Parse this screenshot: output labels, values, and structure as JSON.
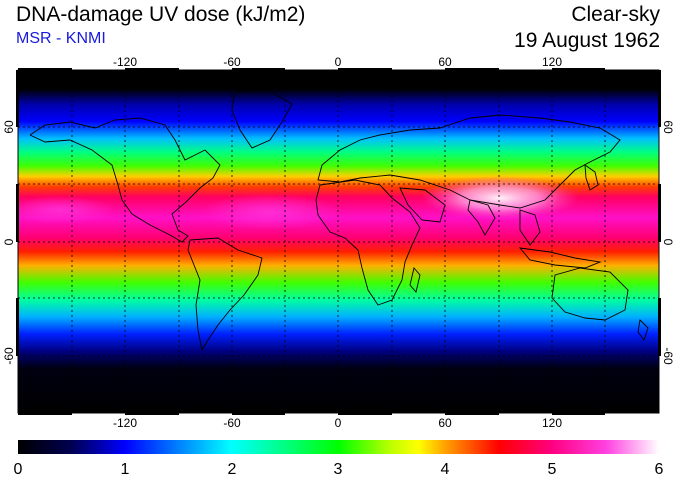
{
  "header": {
    "title": "DNA-damage UV dose (kJ/m2)",
    "source": "MSR - KNMI",
    "condition": "Clear-sky",
    "date": "19 August 1962"
  },
  "map": {
    "projection": "equirectangular",
    "lon_labels": [
      "-120",
      "-60",
      "0",
      "60",
      "120"
    ],
    "lat_labels": [
      "60",
      "0",
      "-60"
    ],
    "lat_labels_right": [
      "60",
      "0",
      "-60"
    ],
    "colors": {
      "polar_night": "#000000",
      "coastline": "#000000",
      "grid": "#000000"
    }
  },
  "colorbar": {
    "unit": "kJ/m2",
    "min": 0,
    "max": 6,
    "tick_labels": [
      "0",
      "1",
      "2",
      "3",
      "4",
      "5",
      "6"
    ],
    "colors": [
      "#000000",
      "#0000ff",
      "#00e0ff",
      "#00ff00",
      "#ffd000",
      "#ff0000",
      "#ff00c8",
      "#ffffff"
    ]
  }
}
